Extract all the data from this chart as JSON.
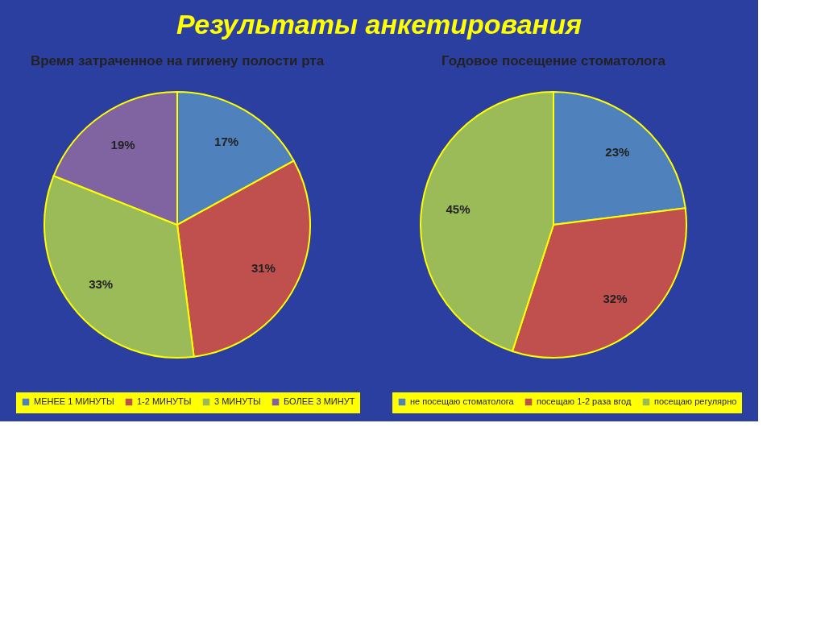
{
  "chart_data": [
    {
      "type": "pie",
      "title": "Время затраченное на гигиену полости рта",
      "annotations": [
        "Результаты анкетирования"
      ],
      "categories": [
        "МЕНЕЕ 1 МИНУТЫ",
        "1-2 МИНУТЫ",
        "3 МИНУТЫ",
        "БОЛЕЕ 3 МИНУТ"
      ],
      "values": [
        17,
        31,
        33,
        19
      ],
      "value_labels": [
        "17%",
        "31%",
        "33%",
        "19%"
      ],
      "colors": [
        "#4f81bd",
        "#c0504d",
        "#9bbb59",
        "#8064a2"
      ],
      "legend": "bottom"
    },
    {
      "type": "pie",
      "title": "Годовое посещение стоматолога",
      "categories": [
        "не посещаю стоматолога",
        "посещаю 1-2 раза вгод",
        "посещаю регулярно"
      ],
      "values": [
        23,
        32,
        45
      ],
      "value_labels": [
        "23%",
        "32%",
        "45%"
      ],
      "colors": [
        "#4f81bd",
        "#c0504d",
        "#9bbb59"
      ],
      "legend": "bottom"
    }
  ]
}
